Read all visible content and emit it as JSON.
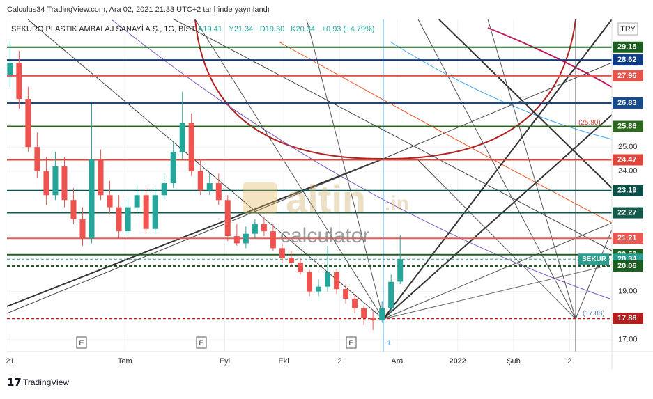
{
  "header": "Calculus34 TradingView.com, Ara 02, 2021 21:33 UTC+2 tarihinde yayınlandı",
  "footer": "TradingView",
  "watermark": {
    "brand": "altin",
    "suffix": ".in",
    "sub": "calculator"
  },
  "chart_data": {
    "type": "candlestick",
    "title": "SEKURO PLASTIK AMBALAJ SANAYİ A.Ş., 1G, BIST",
    "ohlc_legend": [
      "A19.41",
      "Y21.34",
      "D19.30",
      "K20.34",
      "+0.93 (+4.79%)"
    ],
    "currency": "TRY",
    "x": [
      0,
      3,
      6,
      9,
      12,
      15,
      18,
      21,
      24,
      27,
      30,
      33,
      36,
      39,
      42,
      45,
      48,
      51,
      54,
      57,
      60,
      63,
      66,
      69,
      72,
      75,
      78,
      81,
      84,
      87,
      90,
      93,
      96,
      99,
      102,
      105,
      108,
      111,
      114,
      117,
      120,
      123,
      126,
      129
    ],
    "open": [
      28.0,
      28.5,
      27.0,
      25.0,
      24.0,
      23.0,
      24.2,
      22.8,
      22.0,
      21.2,
      24.5,
      23.0,
      22.5,
      21.5,
      22.5,
      23.0,
      21.6,
      23.0,
      23.5,
      24.8,
      26.0,
      24.0,
      23.2,
      23.5,
      22.8,
      21.3,
      21.0,
      21.4,
      21.8,
      21.5,
      20.8,
      20.4,
      20.2,
      19.8,
      19.0,
      19.2,
      19.8,
      19.1,
      18.7,
      18.3,
      17.9,
      17.8,
      18.3,
      19.41
    ],
    "high": [
      29.4,
      29.0,
      27.5,
      25.6,
      24.6,
      24.8,
      24.6,
      23.3,
      22.5,
      26.8,
      24.9,
      23.6,
      23.0,
      22.9,
      23.4,
      23.3,
      23.3,
      23.9,
      25.2,
      27.3,
      26.4,
      24.5,
      23.9,
      23.9,
      23.0,
      21.8,
      21.7,
      22.0,
      22.1,
      21.8,
      21.0,
      20.7,
      20.4,
      19.9,
      19.5,
      20.9,
      19.9,
      19.3,
      18.9,
      18.4,
      18.2,
      18.6,
      19.7,
      21.34
    ],
    "low": [
      27.5,
      26.6,
      24.8,
      23.7,
      22.6,
      22.8,
      22.5,
      21.8,
      20.9,
      21.0,
      22.8,
      22.2,
      21.2,
      21.3,
      22.2,
      21.4,
      21.4,
      22.8,
      23.3,
      24.5,
      23.8,
      23.0,
      23.0,
      22.6,
      21.1,
      20.9,
      20.8,
      21.2,
      21.3,
      20.7,
      20.2,
      20.0,
      19.7,
      18.8,
      18.8,
      19.0,
      18.9,
      18.5,
      18.1,
      17.6,
      17.4,
      17.7,
      18.1,
      19.3
    ],
    "close": [
      28.5,
      27.0,
      25.0,
      24.0,
      23.0,
      24.2,
      22.8,
      22.0,
      21.2,
      24.5,
      23.0,
      22.5,
      21.5,
      22.5,
      23.0,
      21.6,
      23.0,
      23.5,
      24.8,
      26.0,
      24.0,
      23.2,
      23.5,
      22.8,
      21.3,
      21.0,
      21.4,
      21.8,
      21.5,
      20.8,
      20.4,
      20.2,
      19.8,
      19.0,
      19.2,
      19.8,
      19.1,
      18.7,
      18.3,
      17.9,
      17.8,
      18.3,
      19.4,
      20.34
    ],
    "up_color": "#26a69a",
    "down_color": "#ef5350",
    "xlim": [
      -1,
      199
    ],
    "ylim": [
      16.5,
      30.3
    ],
    "xticks": [
      {
        "value": 0,
        "label": "21"
      },
      {
        "value": 38,
        "label": "Tem"
      },
      {
        "value": 71,
        "label": "Eyl"
      },
      {
        "value": 90.5,
        "label": "Eki"
      },
      {
        "value": 109,
        "label": "2"
      },
      {
        "value": 128,
        "label": "Ara"
      },
      {
        "value": 148,
        "label": "2022"
      },
      {
        "value": 166.5,
        "label": "Şub"
      },
      {
        "value": 185,
        "label": "2"
      }
    ],
    "yticks": [
      {
        "value": 17,
        "label": "17.00"
      },
      {
        "value": 19,
        "label": "19.00"
      },
      {
        "value": 24,
        "label": "24.00"
      },
      {
        "value": 25,
        "label": "25.00"
      }
    ],
    "grid": true,
    "levels": [
      {
        "value": 29.15,
        "color": "#1b5e20"
      },
      {
        "value": 28.62,
        "color": "#0d3c84"
      },
      {
        "value": 27.96,
        "color": "#e5534b"
      },
      {
        "value": 26.83,
        "color": "#174a8b"
      },
      {
        "value": 25.86,
        "color": "#2d6a1f"
      },
      {
        "value": 24.47,
        "color": "#e0453a"
      },
      {
        "value": 23.19,
        "color": "#0b4f4a"
      },
      {
        "value": 22.27,
        "color": "#145a4c"
      },
      {
        "value": 21.21,
        "color": "#e85a52"
      },
      {
        "value": 20.53,
        "color": "#1d5e20"
      },
      {
        "value": 20.34,
        "color": "#2a9d8f",
        "name": "SEKUR"
      },
      {
        "value": 20.06,
        "color": "#1b5e20"
      },
      {
        "value": 17.88,
        "color": "#b71c1c"
      }
    ],
    "annotations": [
      {
        "value": 25.8,
        "label": "(25.80)"
      },
      {
        "value": 17.88,
        "label": "(17.88)"
      }
    ],
    "events": [
      "E",
      "E",
      "E",
      "1"
    ]
  }
}
